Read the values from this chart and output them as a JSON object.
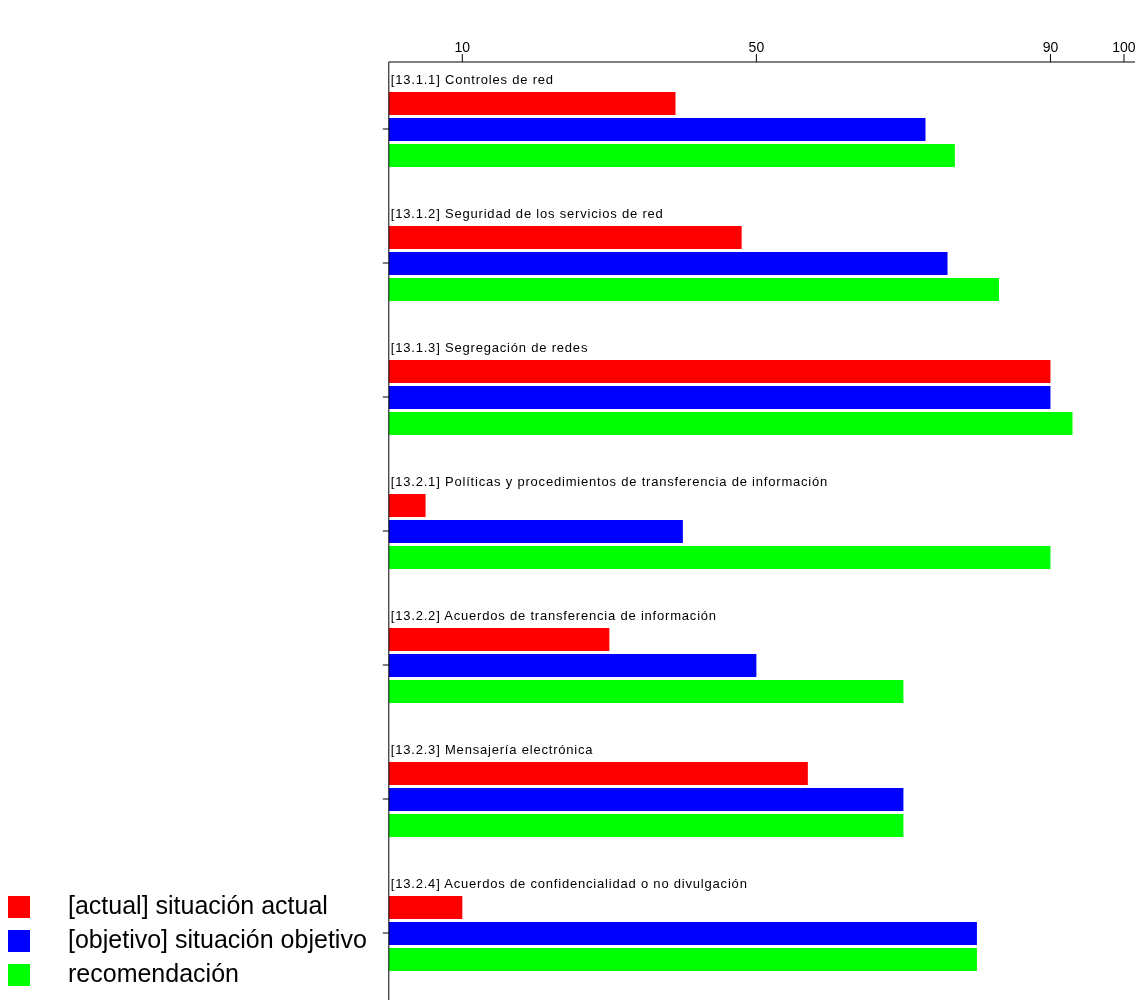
{
  "chart_data": {
    "type": "bar",
    "orientation": "horizontal",
    "categories": [
      "[13.1.1] Controles de red",
      "[13.1.2] Seguridad de los servicios de red",
      "[13.1.3] Segregación de redes",
      "[13.2.1] Políticas y procedimientos de transferencia de información",
      "[13.2.2] Acuerdos de transferencia de información",
      "[13.2.3] Mensajería electrónica",
      "[13.2.4] Acuerdos de confidencialidad o no divulgación"
    ],
    "series": [
      {
        "name": "[actual] situación actual",
        "color": "#ff0000",
        "values": [
          39,
          48,
          90,
          5,
          30,
          57,
          10
        ]
      },
      {
        "name": "[objetivo] situación objetivo",
        "color": "#0000ff",
        "values": [
          73,
          76,
          90,
          40,
          50,
          70,
          80
        ]
      },
      {
        "name": "recomendación",
        "color": "#00ff00",
        "values": [
          77,
          83,
          93,
          90,
          70,
          70,
          80
        ]
      }
    ],
    "xlim": [
      0,
      101.5
    ],
    "xticks": [
      10,
      50,
      90,
      100
    ],
    "grid": false,
    "legend": "bottom left"
  }
}
